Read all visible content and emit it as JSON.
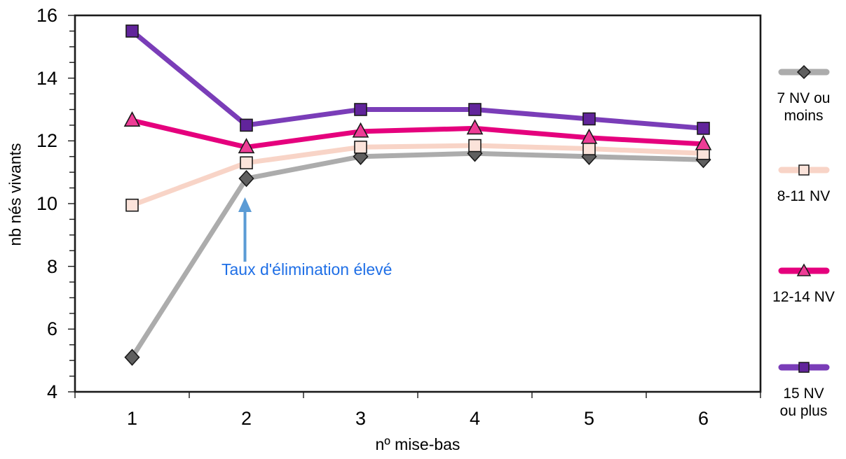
{
  "chart_data": {
    "type": "line",
    "title": "",
    "xlabel": "nº mise-bas",
    "ylabel": "nb nés vivants",
    "x": [
      1,
      2,
      3,
      4,
      5,
      6
    ],
    "x_tick_labels": [
      "1",
      "2",
      "3",
      "4",
      "5",
      "6"
    ],
    "ylim": [
      4,
      16
    ],
    "y_major_ticks": [
      4,
      6,
      8,
      10,
      12,
      14,
      16
    ],
    "y_minor_step": 0.5,
    "grid": false,
    "legend_position": "right",
    "axis_color": "#1a1a1a",
    "series": [
      {
        "name": "7 NV ou moins",
        "legend_label": "7 NV ou\nmoins",
        "marker": "diamond",
        "line_color": "#acacac",
        "marker_fill": "#5f5f5f",
        "marker_stroke": "#1a1a1a",
        "values": [
          5.1,
          10.8,
          11.5,
          11.6,
          11.5,
          11.4
        ]
      },
      {
        "name": "8-11 NV",
        "legend_label": "8-11 NV",
        "marker": "square",
        "line_color": "#f8d4c7",
        "marker_fill": "#fbe3da",
        "marker_stroke": "#1a1a1a",
        "values": [
          9.95,
          11.3,
          11.8,
          11.85,
          11.75,
          11.6
        ]
      },
      {
        "name": "12-14 NV",
        "legend_label": "12-14 NV",
        "marker": "triangle",
        "line_color": "#e5007d",
        "marker_fill": "#ee3d96",
        "marker_stroke": "#1a1a1a",
        "values": [
          12.65,
          11.8,
          12.3,
          12.4,
          12.1,
          11.9
        ]
      },
      {
        "name": "15 NV ou plus",
        "legend_label": "15 NV\nou plus",
        "marker": "square",
        "line_color": "#7a3db8",
        "marker_fill": "#61249b",
        "marker_stroke": "#1a1a1a",
        "values": [
          15.5,
          12.5,
          13.0,
          13.0,
          12.7,
          12.4
        ]
      }
    ],
    "annotation": {
      "text": "Taux d'élimination élevé",
      "color": "#1f6fe6",
      "arrow_color": "#5b9bd5",
      "arrow_x_category": 2,
      "arrow_tip_y_value": 10.2,
      "arrow_base_y_value": 8.15
    }
  }
}
